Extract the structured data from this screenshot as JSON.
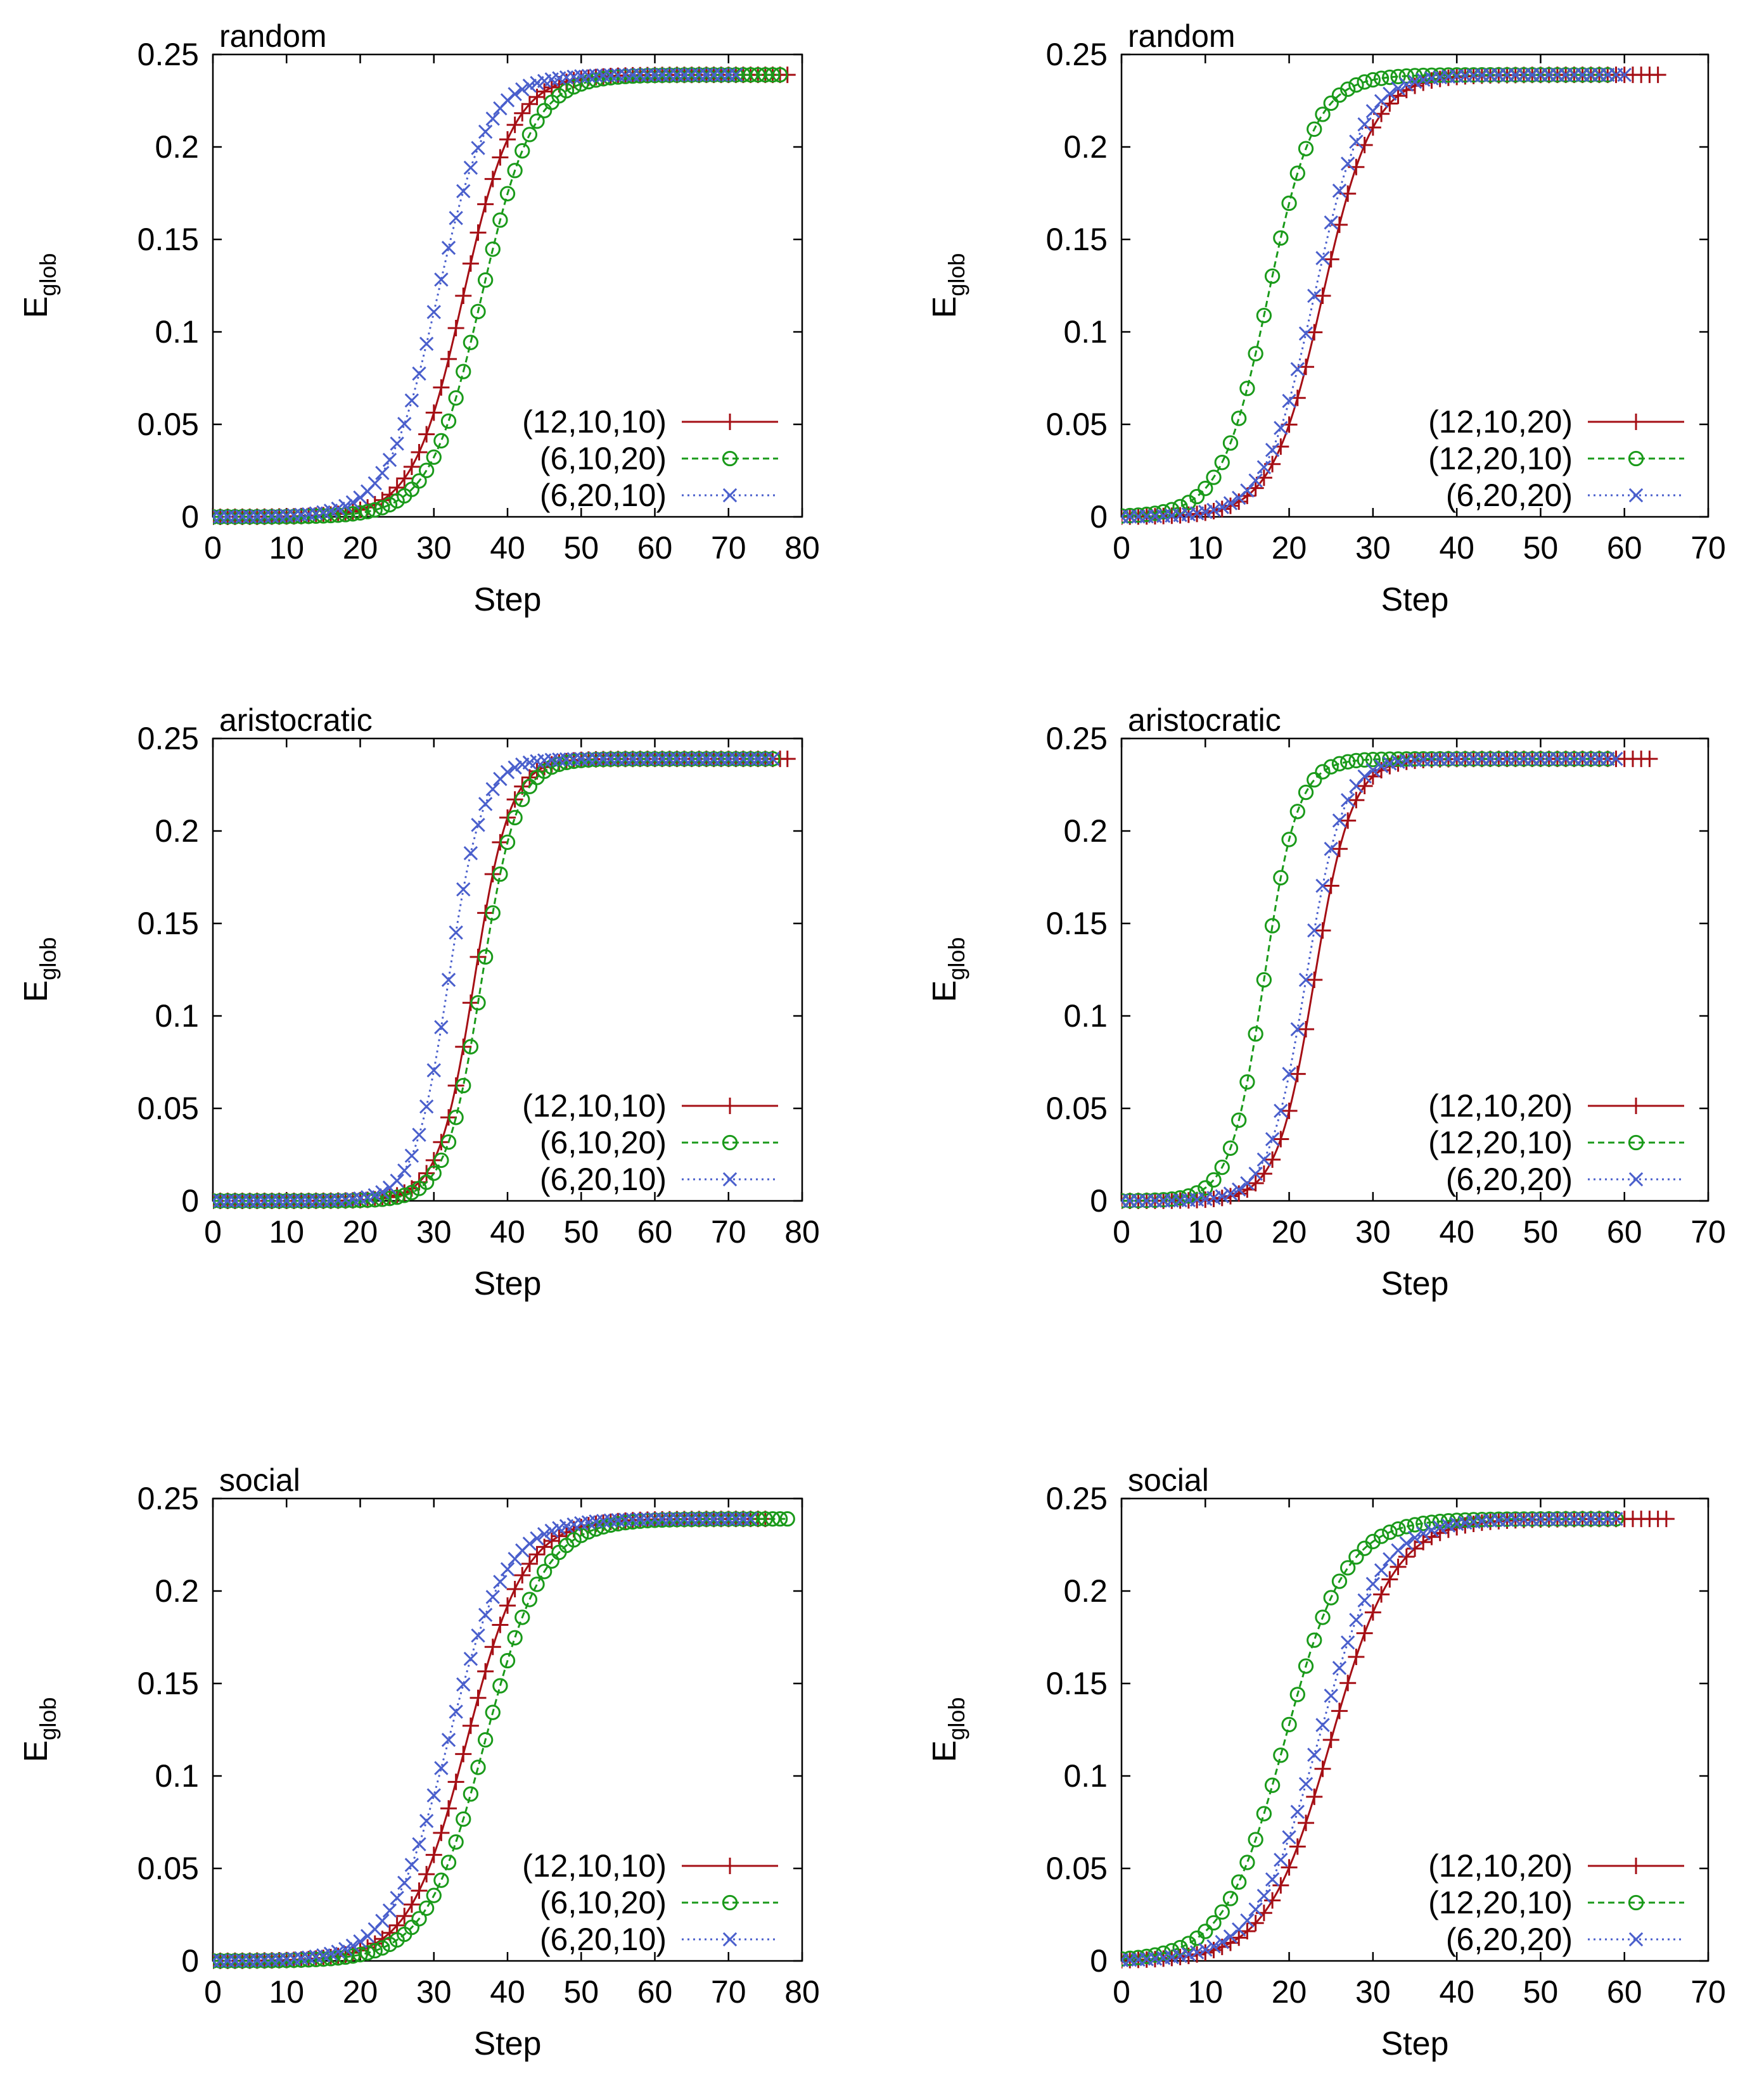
{
  "chart_data": [
    {
      "id": "p-random-left",
      "type": "line",
      "title": "random",
      "xlabel": "Step",
      "ylabel_main": "E",
      "ylabel_sub": "glob",
      "xlim": [
        0,
        80
      ],
      "ylim": [
        0,
        0.25
      ],
      "xticks": [
        "0",
        "10",
        "20",
        "30",
        "40",
        "50",
        "60",
        "70",
        "80"
      ],
      "yticks": [
        "0",
        "0.05",
        "0.1",
        "0.15",
        "0.2",
        "0.25"
      ],
      "legend_position": "bottom-right",
      "series": [
        {
          "name": "(12,10,10)",
          "color": "#a50f15",
          "marker": "plus",
          "dash": "solid",
          "x_end": 78,
          "mid": 34.0,
          "width": 3.4,
          "ymax": 0.239
        },
        {
          "name": "(6,10,20)",
          "color": "#1a9a1a",
          "marker": "circle",
          "dash": "dashed",
          "x_end": 77,
          "mid": 36.5,
          "width": 3.5,
          "ymax": 0.239
        },
        {
          "name": "(6,20,10)",
          "color": "#4a5fcc",
          "marker": "cross",
          "dash": "dotted",
          "x_end": 71,
          "mid": 30.5,
          "width": 3.4,
          "ymax": 0.239
        }
      ]
    },
    {
      "id": "p-random-right",
      "type": "line",
      "title": "random",
      "xlabel": "Step",
      "ylabel_main": "E",
      "ylabel_sub": "glob",
      "xlim": [
        0,
        70
      ],
      "ylim": [
        0,
        0.25
      ],
      "xticks": [
        "0",
        "10",
        "20",
        "30",
        "40",
        "50",
        "60",
        "70"
      ],
      "yticks": [
        "0",
        "0.05",
        "0.1",
        "0.15",
        "0.2",
        "0.25"
      ],
      "legend_position": "bottom-right",
      "series": [
        {
          "name": "(12,10,20)",
          "color": "#a50f15",
          "marker": "plus",
          "dash": "solid",
          "x_end": 64,
          "mid": 24.0,
          "width": 3.0,
          "ymax": 0.239
        },
        {
          "name": "(12,20,10)",
          "color": "#1a9a1a",
          "marker": "circle",
          "dash": "dashed",
          "x_end": 58,
          "mid": 17.5,
          "width": 2.8,
          "ymax": 0.239
        },
        {
          "name": "(6,20,20)",
          "color": "#4a5fcc",
          "marker": "cross",
          "dash": "dotted",
          "x_end": 60,
          "mid": 23.0,
          "width": 2.9,
          "ymax": 0.239
        }
      ]
    },
    {
      "id": "p-aristocratic-left",
      "type": "line",
      "title": "aristocratic",
      "xlabel": "Step",
      "ylabel_main": "E",
      "ylabel_sub": "glob",
      "xlim": [
        0,
        80
      ],
      "ylim": [
        0,
        0.25
      ],
      "xticks": [
        "0",
        "10",
        "20",
        "30",
        "40",
        "50",
        "60",
        "70",
        "80"
      ],
      "yticks": [
        "0",
        "0.05",
        "0.1",
        "0.15",
        "0.2",
        "0.25"
      ],
      "legend_position": "bottom-right",
      "series": [
        {
          "name": "(12,10,10)",
          "color": "#a50f15",
          "marker": "plus",
          "dash": "solid",
          "x_end": 78,
          "mid": 35.5,
          "width": 2.4,
          "ymax": 0.239
        },
        {
          "name": "(6,10,20)",
          "color": "#1a9a1a",
          "marker": "circle",
          "dash": "dashed",
          "x_end": 76,
          "mid": 36.5,
          "width": 2.4,
          "ymax": 0.239
        },
        {
          "name": "(6,20,10)",
          "color": "#4a5fcc",
          "marker": "cross",
          "dash": "dotted",
          "x_end": 76,
          "mid": 32.0,
          "width": 2.3,
          "ymax": 0.239
        }
      ]
    },
    {
      "id": "p-aristocratic-right",
      "type": "line",
      "title": "aristocratic",
      "xlabel": "Step",
      "ylabel_main": "E",
      "ylabel_sub": "glob",
      "xlim": [
        0,
        70
      ],
      "ylim": [
        0,
        0.25
      ],
      "xticks": [
        "0",
        "10",
        "20",
        "30",
        "40",
        "50",
        "60",
        "70"
      ],
      "yticks": [
        "0",
        "0.05",
        "0.1",
        "0.15",
        "0.2",
        "0.25"
      ],
      "legend_position": "bottom-right",
      "series": [
        {
          "name": "(12,10,20)",
          "color": "#a50f15",
          "marker": "plus",
          "dash": "solid",
          "x_end": 63,
          "mid": 23.0,
          "width": 2.2,
          "ymax": 0.239
        },
        {
          "name": "(12,20,10)",
          "color": "#1a9a1a",
          "marker": "circle",
          "dash": "dashed",
          "x_end": 58,
          "mid": 17.0,
          "width": 2.0,
          "ymax": 0.239
        },
        {
          "name": "(6,20,20)",
          "color": "#4a5fcc",
          "marker": "cross",
          "dash": "dotted",
          "x_end": 59,
          "mid": 22.0,
          "width": 2.2,
          "ymax": 0.239
        }
      ]
    },
    {
      "id": "p-social-left",
      "type": "line",
      "title": "social",
      "xlabel": "Step",
      "ylabel_main": "E",
      "ylabel_sub": "glob",
      "xlim": [
        0,
        80
      ],
      "ylim": [
        0,
        0.25
      ],
      "xticks": [
        "0",
        "10",
        "20",
        "30",
        "40",
        "50",
        "60",
        "70",
        "80"
      ],
      "yticks": [
        "0",
        "0.05",
        "0.1",
        "0.15",
        "0.2",
        "0.25"
      ],
      "legend_position": "bottom-right",
      "series": [
        {
          "name": "(12,10,10)",
          "color": "#a50f15",
          "marker": "plus",
          "dash": "solid",
          "x_end": 75,
          "mid": 34.5,
          "width": 3.9,
          "ymax": 0.239
        },
        {
          "name": "(6,10,20)",
          "color": "#1a9a1a",
          "marker": "circle",
          "dash": "dashed",
          "x_end": 78,
          "mid": 37.0,
          "width": 4.0,
          "ymax": 0.239
        },
        {
          "name": "(6,20,10)",
          "color": "#4a5fcc",
          "marker": "cross",
          "dash": "dotted",
          "x_end": 73,
          "mid": 32.0,
          "width": 3.9,
          "ymax": 0.239
        }
      ]
    },
    {
      "id": "p-social-right",
      "type": "line",
      "title": "social",
      "xlabel": "Step",
      "ylabel_main": "E",
      "ylabel_sub": "glob",
      "xlim": [
        0,
        70
      ],
      "ylim": [
        0,
        0.25
      ],
      "xticks": [
        "0",
        "10",
        "20",
        "30",
        "40",
        "50",
        "60",
        "70"
      ],
      "yticks": [
        "0",
        "0.05",
        "0.1",
        "0.15",
        "0.2",
        "0.25"
      ],
      "legend_position": "bottom-right",
      "series": [
        {
          "name": "(12,10,20)",
          "color": "#a50f15",
          "marker": "plus",
          "dash": "solid",
          "x_end": 65,
          "mid": 25.0,
          "width": 3.8,
          "ymax": 0.239
        },
        {
          "name": "(12,20,10)",
          "color": "#1a9a1a",
          "marker": "circle",
          "dash": "dashed",
          "x_end": 59,
          "mid": 19.5,
          "width": 3.6,
          "ymax": 0.239
        },
        {
          "name": "(6,20,20)",
          "color": "#4a5fcc",
          "marker": "cross",
          "dash": "dotted",
          "x_end": 59,
          "mid": 23.5,
          "width": 3.7,
          "ymax": 0.239
        }
      ]
    }
  ]
}
